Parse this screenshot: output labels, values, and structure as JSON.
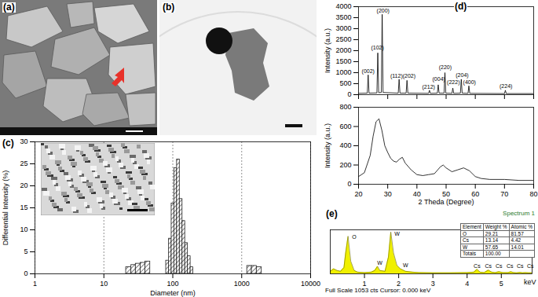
{
  "images": [
    {
      "title": "(a)"
    },
    {
      "title": "(b)"
    }
  ],
  "chart_data": [
    {
      "type": "histogram",
      "title": "(c)",
      "xlabel": "Diameter (nm)",
      "ylabel": "Differential Intensity (%)",
      "bins": [
        21,
        25,
        29,
        34,
        40,
        47,
        80,
        88,
        96,
        105,
        115,
        126,
        138,
        151,
        165,
        181,
        198,
        1200,
        1400,
        1650,
        1950
      ],
      "values": [
        1.5,
        2,
        2.3,
        2.5,
        2.8,
        0,
        3,
        8,
        16,
        24,
        26,
        17,
        12,
        7,
        4,
        1.5,
        0,
        1.8,
        1.8,
        1.5
      ],
      "color": "#222222",
      "log": "x",
      "xlim": [
        1,
        10000
      ],
      "xticks": [
        1,
        10,
        100,
        1000,
        10000
      ],
      "ylim": [
        0,
        30
      ],
      "yticks": [
        0,
        5,
        10,
        15,
        20,
        25,
        30
      ],
      "grid": "x"
    },
    {
      "type": "line",
      "title": "(d)",
      "ylabel": "Intensity (a.u.)",
      "x": [
        20,
        23.0,
        23.3,
        23.6,
        26.3,
        26.6,
        26.9,
        27.8,
        28.1,
        28.4,
        33.6,
        33.9,
        34.2,
        36.3,
        36.6,
        36.9,
        44.0,
        44.3,
        44.6,
        47.0,
        47.3,
        47.6,
        49.3,
        49.6,
        49.9,
        52.0,
        52.3,
        52.6,
        54.9,
        55.2,
        55.5,
        57.5,
        57.8,
        58.1,
        70.0,
        70.3,
        70.6,
        80
      ],
      "values": [
        60,
        70,
        900,
        70,
        80,
        1900,
        90,
        100,
        3650,
        100,
        70,
        700,
        70,
        70,
        650,
        70,
        60,
        200,
        60,
        70,
        450,
        70,
        70,
        1000,
        70,
        60,
        300,
        60,
        70,
        700,
        70,
        60,
        400,
        60,
        50,
        200,
        50,
        50
      ],
      "color": "#000000",
      "xlim": [
        20,
        80
      ],
      "xticks": [
        20,
        30,
        40,
        50,
        60,
        70,
        80
      ],
      "ylim": [
        0,
        4000
      ],
      "yticks": [
        0,
        500,
        1000,
        1500,
        2000,
        2500,
        3000,
        3500,
        4000
      ],
      "tick_labels": "y",
      "annotations": [
        {
          "text": "(002)",
          "x": 23.3,
          "y": 1050
        },
        {
          "text": "(102)",
          "x": 26.5,
          "y": 2150
        },
        {
          "text": "(200)",
          "x": 28.4,
          "y": 3800
        },
        {
          "text": "(112)(202)",
          "x": 35.2,
          "y": 850
        },
        {
          "text": "(212)",
          "x": 44,
          "y": 350
        },
        {
          "text": "(004)",
          "x": 47.5,
          "y": 700
        },
        {
          "text": "(220)",
          "x": 49.7,
          "y": 1250
        },
        {
          "text": "(222)",
          "x": 52.5,
          "y": 550
        },
        {
          "text": "(204)",
          "x": 55.5,
          "y": 900
        },
        {
          "text": "(400)",
          "x": 58,
          "y": 550
        },
        {
          "text": "(224)",
          "x": 70.5,
          "y": 400
        }
      ]
    },
    {
      "type": "line",
      "xlabel": "2 Theda (Degree)",
      "ylabel": "Intensity (a.u.)",
      "x": [
        20,
        22,
        24,
        25,
        26,
        27,
        28,
        29,
        30,
        31,
        32,
        33,
        34,
        35,
        36,
        38,
        40,
        42,
        44,
        46,
        48,
        49,
        50,
        52,
        54,
        56,
        58,
        60,
        62,
        65,
        70,
        75,
        80
      ],
      "values": [
        80,
        120,
        300,
        500,
        650,
        680,
        560,
        400,
        330,
        270,
        240,
        230,
        260,
        280,
        220,
        150,
        100,
        90,
        100,
        110,
        180,
        200,
        170,
        130,
        150,
        170,
        140,
        80,
        60,
        50,
        50,
        40,
        40
      ],
      "color": "#000000",
      "xlim": [
        20,
        80
      ],
      "xticks": [
        20,
        30,
        40,
        50,
        60,
        70,
        80
      ],
      "ylim": [
        0,
        800
      ],
      "yticks": [
        0,
        200,
        400,
        600,
        800
      ]
    },
    {
      "type": "area",
      "title": "(e)",
      "subtitle": "Spectrum 1",
      "xlabel": "keV",
      "caption": "Full Scale 1053 cts Cursor: 0.000 keV",
      "x": [
        0,
        0.1,
        0.2,
        0.3,
        0.4,
        0.45,
        0.52,
        0.6,
        0.7,
        0.8,
        1.0,
        1.2,
        1.3,
        1.38,
        1.45,
        1.6,
        1.7,
        1.77,
        1.85,
        1.95,
        2.05,
        2.2,
        2.4,
        2.6,
        3.0,
        3.5,
        4.0,
        4.2,
        4.29,
        4.38,
        4.5,
        4.62,
        4.72,
        4.82,
        4.93,
        5.05,
        5.2,
        5.28,
        5.36,
        5.45,
        5.55,
        5.62,
        5.7,
        5.8,
        5.9
      ],
      "values": [
        60,
        120,
        80,
        60,
        150,
        500,
        900,
        300,
        80,
        40,
        30,
        40,
        80,
        180,
        80,
        60,
        400,
        1000,
        500,
        200,
        120,
        60,
        40,
        30,
        25,
        25,
        30,
        40,
        110,
        40,
        30,
        90,
        40,
        30,
        50,
        30,
        30,
        50,
        30,
        25,
        35,
        25,
        30,
        25,
        25
      ],
      "color": "#f0f000",
      "xlim": [
        0,
        5.9
      ],
      "xticks": [
        1,
        2,
        3,
        4,
        5
      ],
      "ylim": [
        0,
        1053
      ],
      "tick_labels": "x",
      "annotations": [
        {
          "text": "O",
          "x": 0.7,
          "y": 880
        },
        {
          "text": "W",
          "x": 1.95,
          "y": 960
        },
        {
          "text": "W",
          "x": 1.45,
          "y": 260
        },
        {
          "text": "W",
          "x": 2.2,
          "y": 210
        },
        {
          "text": "Cs",
          "x": 4.29,
          "y": 190
        },
        {
          "text": "Cs",
          "x": 4.62,
          "y": 190
        },
        {
          "text": "Cs",
          "x": 4.93,
          "y": 190
        },
        {
          "text": "Cs",
          "x": 5.25,
          "y": 190
        },
        {
          "text": "Cs",
          "x": 5.55,
          "y": 190
        },
        {
          "text": "Cs",
          "x": 5.85,
          "y": 190
        }
      ],
      "table": {
        "columns": [
          "Element",
          "Weight %",
          "Atomic %"
        ],
        "rows": [
          [
            "O",
            "29.21",
            "81.57"
          ],
          [
            "Cs",
            "13.14",
            "4.42"
          ],
          [
            "W",
            "57.65",
            "14.01"
          ],
          [
            "Totals",
            "100.00"
          ]
        ]
      }
    }
  ]
}
